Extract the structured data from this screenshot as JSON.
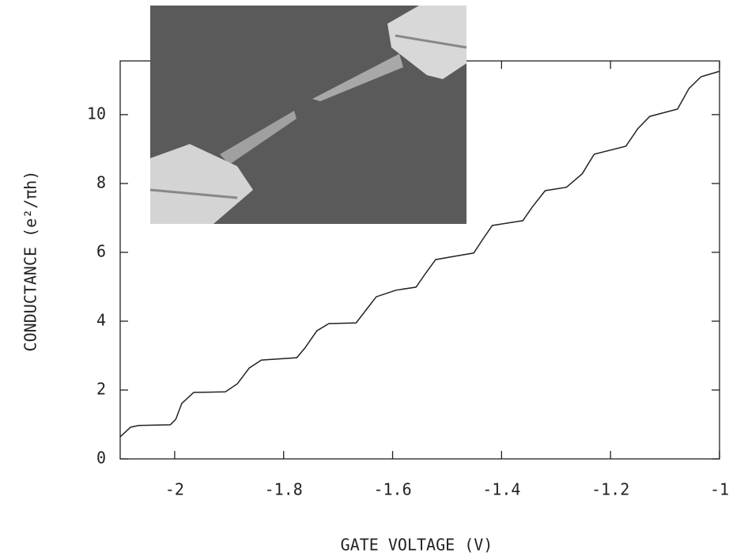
{
  "chart_data": {
    "type": "line",
    "x_label": "GATE VOLTAGE   (V)",
    "y_label": "CONDUCTANCE   (e²/πh)",
    "x": [
      -2.1,
      -2.081,
      -2.066,
      -2.008,
      -1.998,
      -1.987,
      -1.965,
      -1.907,
      -1.885,
      -1.863,
      -1.841,
      -1.776,
      -1.761,
      -1.739,
      -1.717,
      -1.667,
      -1.649,
      -1.63,
      -1.594,
      -1.557,
      -1.539,
      -1.521,
      -1.485,
      -1.451,
      -1.434,
      -1.417,
      -1.361,
      -1.344,
      -1.32,
      -1.281,
      -1.252,
      -1.23,
      -1.172,
      -1.15,
      -1.128,
      -1.077,
      -1.056,
      -1.034,
      -1.0
    ],
    "series": [
      {
        "color": "#222222",
        "values": [
          0.64,
          0.92,
          0.97,
          0.99,
          1.15,
          1.61,
          1.93,
          1.95,
          2.18,
          2.64,
          2.87,
          2.94,
          3.22,
          3.72,
          3.93,
          3.95,
          4.32,
          4.71,
          4.9,
          4.99,
          5.4,
          5.79,
          5.89,
          5.98,
          6.39,
          6.78,
          6.92,
          7.31,
          7.79,
          7.89,
          8.28,
          8.85,
          9.08,
          9.59,
          9.95,
          10.16,
          10.76,
          11.1,
          11.26
        ]
      }
    ],
    "xlim": [
      -2.1,
      -1.0
    ],
    "xticks": [
      -2,
      -1.8,
      -1.6,
      -1.4,
      -1.2,
      -1
    ],
    "ylim": [
      0,
      11.56
    ],
    "yticks": [
      0,
      2,
      4,
      6,
      8,
      10
    ]
  }
}
